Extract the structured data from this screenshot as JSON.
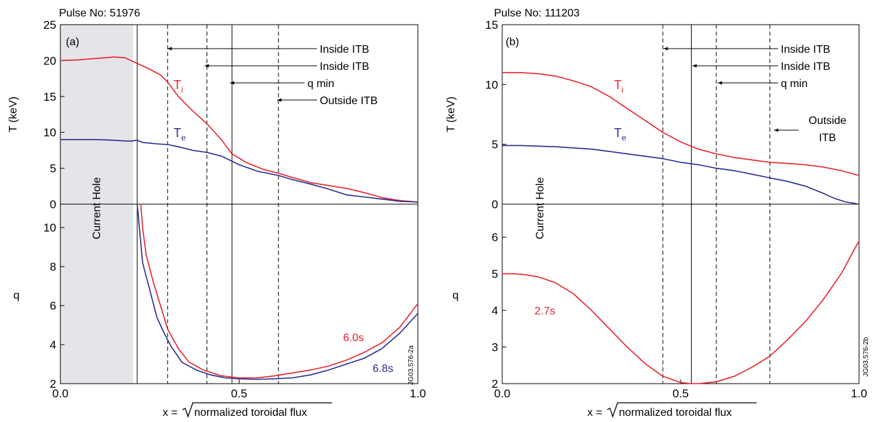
{
  "colors": {
    "red": "#e8202a",
    "blue": "#262a8c",
    "hole": "#e4e5e8",
    "axis": "#000000"
  },
  "panels": [
    {
      "id": "a",
      "pulse": "Pulse No: 51976",
      "panel_label": "(a)",
      "t_ylabel": "T (keV)",
      "q_ylabel": "q",
      "xlabel_pre": "x =",
      "xlabel_flux": "normalized toroidal flux",
      "x_ticks": [
        "0.0",
        "0.5",
        "1.0"
      ],
      "t_ticks": [
        "0",
        "5",
        "10",
        "15",
        "20",
        "25"
      ],
      "q_ticks": [
        "2",
        "4",
        "6",
        "8",
        "10"
      ],
      "current_hole_label": "Current Hole",
      "code": "JG03.576-2a",
      "ti_label": "T",
      "ti_sub": "i",
      "te_label": "T",
      "te_sub": "e",
      "annotations": [
        "Inside ITB",
        "Inside ITB",
        "q min",
        "Outside ITB"
      ],
      "time_labels": [
        "6.0s",
        "6.8s"
      ]
    },
    {
      "id": "b",
      "pulse": "Pulse No: 111203",
      "panel_label": "(b)",
      "t_ylabel": "T (keV)",
      "q_ylabel": "q",
      "xlabel_pre": "x =",
      "xlabel_flux": "normalized toroidal flux",
      "x_ticks": [
        "0.0",
        "0.5",
        "1.0"
      ],
      "t_ticks": [
        "0",
        "5",
        "10",
        "15"
      ],
      "q_ticks": [
        "2",
        "3",
        "4",
        "5",
        "6"
      ],
      "current_hole_label": "Current Hole",
      "code": "JG03.576-2b",
      "ti_label": "T",
      "ti_sub": "i",
      "te_label": "T",
      "te_sub": "e",
      "annotations": [
        "Inside ITB",
        "Inside ITB",
        "q min",
        "Outside",
        "ITB"
      ],
      "time_labels": [
        "2.7s"
      ]
    }
  ],
  "chart_data": [
    {
      "type": "line",
      "panel": "a",
      "xlim": [
        0.0,
        1.0
      ],
      "current_hole": [
        0.0,
        0.215
      ],
      "markers": {
        "dashed": [
          0.3,
          0.41,
          0.61
        ],
        "solid": [
          0.215,
          0.48
        ]
      },
      "temperature": {
        "ylim": [
          0,
          25
        ],
        "series": [
          {
            "name": "Ti",
            "color": "red",
            "x": [
              0.0,
              0.05,
              0.1,
              0.15,
              0.18,
              0.215,
              0.25,
              0.28,
              0.3,
              0.33,
              0.37,
              0.41,
              0.45,
              0.48,
              0.52,
              0.57,
              0.61,
              0.65,
              0.7,
              0.75,
              0.8,
              0.85,
              0.88,
              0.9,
              0.95,
              1.0
            ],
            "y": [
              20.0,
              20.1,
              20.3,
              20.5,
              20.4,
              19.6,
              18.8,
              18.0,
              17.0,
              15.0,
              13.0,
              11.2,
              9.0,
              7.0,
              5.8,
              4.8,
              4.3,
              3.7,
              3.0,
              2.6,
              2.2,
              1.6,
              1.2,
              0.9,
              0.5,
              0.3
            ]
          },
          {
            "name": "Te",
            "color": "blue",
            "x": [
              0.0,
              0.05,
              0.1,
              0.15,
              0.18,
              0.2,
              0.215,
              0.23,
              0.25,
              0.27,
              0.3,
              0.33,
              0.37,
              0.41,
              0.45,
              0.5,
              0.55,
              0.61,
              0.65,
              0.7,
              0.75,
              0.8,
              0.85,
              0.9,
              0.95,
              1.0
            ],
            "y": [
              9.0,
              9.0,
              9.0,
              8.9,
              8.8,
              8.8,
              8.9,
              8.6,
              8.5,
              8.4,
              8.3,
              8.0,
              7.5,
              7.2,
              6.7,
              5.5,
              4.6,
              4.0,
              3.4,
              2.8,
              2.1,
              1.3,
              1.0,
              0.7,
              0.4,
              0.3
            ]
          }
        ]
      },
      "q": {
        "ylim": [
          2,
          11.2
        ],
        "series": [
          {
            "name": "6.0s",
            "color": "red",
            "x": [
              0.225,
              0.23,
              0.24,
              0.26,
              0.28,
              0.3,
              0.33,
              0.36,
              0.4,
              0.45,
              0.5,
              0.55,
              0.6,
              0.65,
              0.7,
              0.75,
              0.8,
              0.85,
              0.9,
              0.95,
              1.0
            ],
            "y": [
              11.2,
              10.0,
              8.6,
              7.2,
              6.0,
              4.8,
              3.8,
              3.1,
              2.7,
              2.4,
              2.3,
              2.3,
              2.4,
              2.55,
              2.7,
              2.9,
              3.2,
              3.6,
              4.1,
              4.9,
              6.1
            ]
          },
          {
            "name": "6.8s",
            "color": "blue",
            "x": [
              0.215,
              0.22,
              0.23,
              0.25,
              0.27,
              0.29,
              0.31,
              0.34,
              0.38,
              0.42,
              0.46,
              0.5,
              0.55,
              0.6,
              0.65,
              0.7,
              0.75,
              0.8,
              0.85,
              0.9,
              0.95,
              1.0
            ],
            "y": [
              11.2,
              10.2,
              8.2,
              6.8,
              5.4,
              4.6,
              3.9,
              3.1,
              2.7,
              2.45,
              2.3,
              2.25,
              2.22,
              2.25,
              2.3,
              2.45,
              2.7,
              3.0,
              3.3,
              3.8,
              4.6,
              5.6
            ]
          }
        ]
      }
    },
    {
      "type": "line",
      "panel": "b",
      "xlim": [
        0.0,
        1.0
      ],
      "markers": {
        "dashed": [
          0.45,
          0.6,
          0.75
        ],
        "solid": [
          0.53
        ]
      },
      "temperature": {
        "ylim": [
          0,
          15
        ],
        "series": [
          {
            "name": "Ti",
            "color": "red",
            "x": [
              0.0,
              0.05,
              0.1,
              0.15,
              0.2,
              0.25,
              0.3,
              0.35,
              0.4,
              0.45,
              0.5,
              0.55,
              0.6,
              0.65,
              0.7,
              0.75,
              0.8,
              0.85,
              0.9,
              0.95,
              1.0
            ],
            "y": [
              11.0,
              11.0,
              10.9,
              10.7,
              10.3,
              9.8,
              9.0,
              8.0,
              7.0,
              6.0,
              5.2,
              4.6,
              4.2,
              3.9,
              3.7,
              3.5,
              3.4,
              3.3,
              3.1,
              2.8,
              2.4
            ]
          },
          {
            "name": "Te",
            "color": "blue",
            "x": [
              0.0,
              0.05,
              0.1,
              0.15,
              0.2,
              0.25,
              0.3,
              0.35,
              0.4,
              0.45,
              0.5,
              0.55,
              0.6,
              0.65,
              0.7,
              0.75,
              0.8,
              0.85,
              0.9,
              0.93,
              0.96,
              1.0
            ],
            "y": [
              4.9,
              4.9,
              4.85,
              4.8,
              4.7,
              4.6,
              4.4,
              4.2,
              4.0,
              3.8,
              3.5,
              3.3,
              3.0,
              2.8,
              2.5,
              2.2,
              1.9,
              1.5,
              0.9,
              0.5,
              0.2,
              0.0
            ]
          }
        ]
      },
      "q": {
        "ylim": [
          2,
          6.9
        ],
        "series": [
          {
            "name": "2.7s",
            "color": "red",
            "x": [
              0.0,
              0.03,
              0.06,
              0.1,
              0.15,
              0.2,
              0.25,
              0.3,
              0.35,
              0.4,
              0.45,
              0.5,
              0.53,
              0.55,
              0.6,
              0.65,
              0.7,
              0.75,
              0.8,
              0.85,
              0.9,
              0.95,
              1.0
            ],
            "y": [
              5.0,
              5.0,
              4.98,
              4.92,
              4.75,
              4.45,
              4.0,
              3.5,
              3.0,
              2.55,
              2.2,
              2.03,
              2.0,
              2.0,
              2.05,
              2.2,
              2.45,
              2.75,
              3.2,
              3.7,
              4.3,
              5.0,
              5.9
            ]
          }
        ]
      }
    }
  ]
}
